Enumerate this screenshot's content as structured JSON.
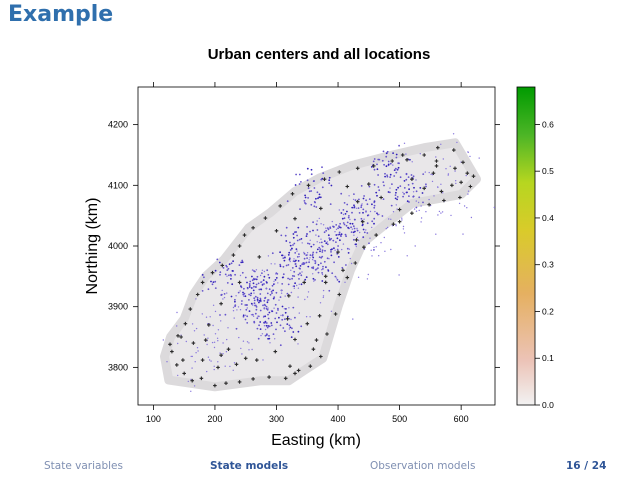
{
  "slide": {
    "title": "Example"
  },
  "footer": {
    "item1": "State variables",
    "item2": "State models",
    "item3": "Observation models",
    "page": "16 / 24"
  },
  "chart_data": {
    "type": "scatter",
    "title": "Urban centers and all locations",
    "xlabel": "Easting (km)",
    "ylabel": "Northing (km)",
    "xlim": [
      75,
      655
    ],
    "ylim": [
      3738,
      4262
    ],
    "x_ticks": [
      "100",
      "200",
      "300",
      "400",
      "500",
      "600"
    ],
    "y_ticks": [
      "3800",
      "3900",
      "4000",
      "4100",
      "4200"
    ],
    "colorbar": {
      "ticks": [
        "0.0",
        "0.1",
        "0.2",
        "0.3",
        "0.4",
        "0.5",
        "0.6"
      ],
      "range": [
        0,
        0.68
      ],
      "colors": [
        "#f2f2f2",
        "#ecc3b7",
        "#e5b061",
        "#d9cb2a",
        "#b6d620",
        "#4cb526",
        "#009b00"
      ]
    },
    "series": [
      {
        "color": "#e9e7e9",
        "description": "region"
      },
      {
        "color": "#6655cc"
      },
      {
        "color": "#2a2a2a"
      }
    ],
    "region_outline": [
      [
        118,
        3818
      ],
      [
        125,
        3779
      ],
      [
        200,
        3768
      ],
      [
        275,
        3778
      ],
      [
        320,
        3778
      ],
      [
        345,
        3795
      ],
      [
        375,
        3815
      ],
      [
        400,
        3900
      ],
      [
        420,
        3960
      ],
      [
        440,
        4005
      ],
      [
        470,
        4030
      ],
      [
        520,
        4070
      ],
      [
        600,
        4085
      ],
      [
        625,
        4110
      ],
      [
        590,
        4170
      ],
      [
        540,
        4162
      ],
      [
        480,
        4148
      ],
      [
        420,
        4132
      ],
      [
        370,
        4112
      ],
      [
        330,
        4090
      ],
      [
        290,
        4055
      ],
      [
        255,
        4030
      ],
      [
        215,
        3978
      ],
      [
        185,
        3950
      ],
      [
        165,
        3920
      ],
      [
        150,
        3880
      ],
      [
        128,
        3850
      ]
    ],
    "urban_clusters": [
      [
        270,
        3935
      ],
      [
        290,
        3905
      ],
      [
        255,
        3905
      ],
      [
        340,
        3995
      ],
      [
        375,
        3970
      ],
      [
        420,
        4030
      ],
      [
        440,
        4060
      ],
      [
        510,
        4090
      ],
      [
        360,
        4095
      ],
      [
        480,
        4130
      ],
      [
        225,
        3950
      ],
      [
        300,
        3870
      ],
      [
        390,
        4010
      ],
      [
        330,
        3960
      ]
    ],
    "location_points": [
      [
        130,
        3826
      ],
      [
        138,
        3804
      ],
      [
        150,
        3790
      ],
      [
        163,
        3778
      ],
      [
        178,
        3782
      ],
      [
        200,
        3770
      ],
      [
        218,
        3774
      ],
      [
        240,
        3776
      ],
      [
        262,
        3781
      ],
      [
        288,
        3784
      ],
      [
        315,
        3782
      ],
      [
        336,
        3795
      ],
      [
        355,
        3802
      ],
      [
        372,
        3818
      ],
      [
        382,
        3855
      ],
      [
        396,
        3888
      ],
      [
        402,
        3920
      ],
      [
        415,
        3948
      ],
      [
        428,
        3972
      ],
      [
        442,
        3998
      ],
      [
        462,
        4018
      ],
      [
        490,
        4036
      ],
      [
        520,
        4054
      ],
      [
        548,
        4068
      ],
      [
        572,
        4075
      ],
      [
        598,
        4080
      ],
      [
        615,
        4098
      ],
      [
        620,
        4115
      ],
      [
        603,
        4138
      ],
      [
        588,
        4158
      ],
      [
        562,
        4162
      ],
      [
        540,
        4150
      ],
      [
        512,
        4142
      ],
      [
        488,
        4140
      ],
      [
        458,
        4132
      ],
      [
        432,
        4128
      ],
      [
        402,
        4122
      ],
      [
        378,
        4110
      ],
      [
        352,
        4100
      ],
      [
        326,
        4086
      ],
      [
        306,
        4066
      ],
      [
        282,
        4046
      ],
      [
        262,
        4030
      ],
      [
        248,
        4018
      ],
      [
        240,
        4000
      ],
      [
        230,
        3985
      ],
      [
        212,
        3968
      ],
      [
        196,
        3956
      ],
      [
        180,
        3940
      ],
      [
        172,
        3920
      ],
      [
        160,
        3896
      ],
      [
        152,
        3872
      ],
      [
        140,
        3852
      ],
      [
        165,
        3840
      ],
      [
        180,
        3812
      ],
      [
        205,
        3800
      ],
      [
        235,
        3805
      ],
      [
        268,
        3812
      ],
      [
        298,
        3826
      ],
      [
        330,
        3846
      ],
      [
        350,
        3872
      ],
      [
        370,
        3885
      ],
      [
        190,
        3870
      ],
      [
        210,
        3905
      ],
      [
        240,
        3940
      ],
      [
        320,
        3918
      ],
      [
        345,
        3940
      ],
      [
        380,
        3950
      ],
      [
        400,
        3990
      ],
      [
        440,
        4040
      ],
      [
        470,
        4080
      ],
      [
        520,
        4110
      ],
      [
        555,
        4120
      ],
      [
        585,
        4100
      ],
      [
        540,
        4095
      ],
      [
        500,
        4060
      ],
      [
        300,
        4025
      ],
      [
        330,
        4045
      ],
      [
        415,
        4098
      ],
      [
        450,
        4102
      ],
      [
        590,
        4128
      ],
      [
        600,
        4105
      ],
      [
        568,
        4090
      ],
      [
        250,
        3815
      ],
      [
        222,
        3830
      ],
      [
        185,
        3845
      ],
      [
        360,
        3830
      ],
      [
        408,
        3960
      ],
      [
        505,
        4150
      ],
      [
        560,
        4132
      ],
      [
        432,
        4073
      ],
      [
        272,
        3982
      ],
      [
        372,
        4062
      ],
      [
        318,
        3880
      ],
      [
        148,
        3812
      ],
      [
        127,
        3838
      ],
      [
        322,
        3802
      ],
      [
        365,
        3845
      ]
    ],
    "extra_points": [
      [
        145,
        3850
      ],
      [
        210,
        3820
      ],
      [
        330,
        3790
      ],
      [
        380,
        3940
      ],
      [
        430,
        4010
      ],
      [
        500,
        4040
      ],
      [
        560,
        4140
      ],
      [
        610,
        4120
      ]
    ]
  }
}
